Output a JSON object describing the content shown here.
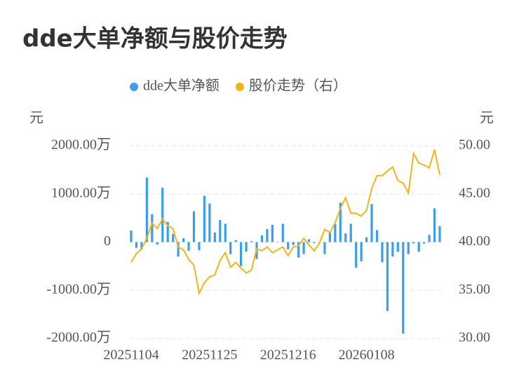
{
  "chart_data": {
    "type": "bar-line",
    "title": "dde大单净额与股价走势",
    "ylabel": "元",
    "y2label": "元",
    "categories": [
      "20251104",
      null,
      null,
      null,
      null,
      null,
      null,
      null,
      null,
      null,
      null,
      null,
      null,
      null,
      null,
      "20251125",
      null,
      null,
      null,
      null,
      null,
      null,
      null,
      null,
      null,
      null,
      null,
      null,
      null,
      null,
      "20251216",
      null,
      null,
      null,
      null,
      null,
      null,
      null,
      null,
      null,
      null,
      null,
      null,
      null,
      null,
      "20260108",
      null,
      null,
      null,
      null,
      null,
      null,
      null,
      null,
      null,
      null,
      null,
      null,
      null,
      null
    ],
    "series": [
      {
        "name": "dde大单净额",
        "type": "bar",
        "color": "#3a9ee8",
        "values": [
          240,
          -120,
          -150,
          1340,
          580,
          -50,
          1130,
          420,
          170,
          -300,
          80,
          -180,
          640,
          -170,
          960,
          800,
          200,
          460,
          380,
          -250,
          40,
          -500,
          -200,
          20,
          -350,
          140,
          270,
          360,
          0,
          380,
          -150,
          -60,
          -320,
          -250,
          60,
          -20,
          0,
          -250,
          200,
          380,
          820,
          180,
          380,
          -530,
          -400,
          100,
          790,
          250,
          -420,
          -1430,
          -300,
          -200,
          -1900,
          -250,
          -30,
          -200,
          -30,
          150,
          700,
          330
        ]
      },
      {
        "name": "股价走势（右）",
        "type": "line",
        "axis": "y2",
        "color": "#f5b31a",
        "values": [
          37.9,
          38.8,
          39.3,
          40.4,
          42.0,
          41.4,
          42.4,
          41.7,
          41.4,
          39.5,
          39.2,
          38.2,
          37.6,
          34.7,
          35.8,
          36.4,
          36.6,
          38.1,
          38.9,
          37.4,
          37.9,
          37.3,
          36.8,
          37.1,
          39.3,
          39.1,
          39.5,
          38.9,
          39.2,
          39.5,
          38.6,
          39.5,
          39.6,
          40.4,
          39.7,
          39.1,
          39.9,
          41.3,
          41.0,
          42.0,
          43.5,
          44.6,
          43.0,
          43.0,
          42.7,
          43.3,
          45.6,
          46.9,
          46.9,
          47.4,
          47.8,
          46.4,
          46.1,
          45.1,
          49.2,
          48.2,
          48.0,
          47.7,
          49.6,
          47.0
        ]
      }
    ],
    "ylim": [
      -2000,
      2000
    ],
    "yticks": [
      {
        "value": -2000,
        "label": "-2000.00万"
      },
      {
        "value": -1000,
        "label": "-1000.00万"
      },
      0,
      {
        "value": 1000,
        "label": "1000.00万"
      },
      {
        "value": 2000,
        "label": "2000.00万"
      }
    ],
    "y2lim": [
      30,
      50
    ],
    "y2ticks": [
      {
        "value": 30,
        "label": "30.00"
      },
      {
        "value": 35,
        "label": "35.00"
      },
      {
        "value": 40,
        "label": "40.00"
      },
      {
        "value": 45,
        "label": "45.00"
      },
      {
        "value": 50,
        "label": "50.00"
      }
    ],
    "grid": true
  }
}
